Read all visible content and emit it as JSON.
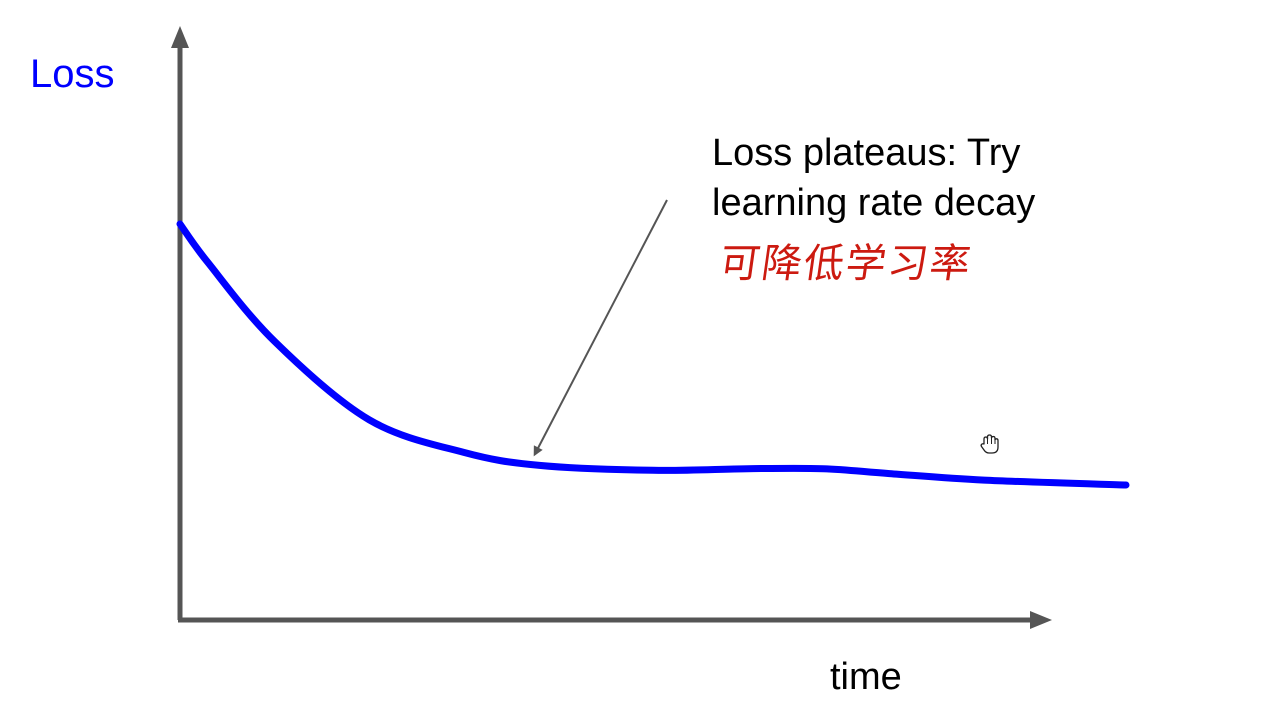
{
  "chart_data": {
    "type": "line",
    "title": "",
    "xlabel": "time",
    "ylabel": "Loss",
    "grid": false,
    "legend": "none",
    "x": [
      0,
      0.03,
      0.1,
      0.2,
      0.3,
      0.38,
      0.5,
      0.6,
      0.68,
      0.75,
      0.85,
      1.0
    ],
    "series": [
      {
        "values": [
          1.0,
          0.88,
          0.64,
          0.4,
          0.3,
          0.26,
          0.245,
          0.25,
          0.25,
          0.235,
          0.215,
          0.2
        ],
        "color": "#0000ff"
      }
    ],
    "xlim": [
      0,
      1.15
    ],
    "ylim": [
      -0.65,
      1.65
    ],
    "annotations": [
      {
        "text": "Loss plateaus: Try learning rate decay",
        "points_to_x": 0.38,
        "points_to_y": 0.26
      }
    ]
  },
  "annotation": {
    "line1": "Loss plateaus: Try",
    "line2": "learning rate decay"
  },
  "handwritten_note": "可降低学习率",
  "colors": {
    "curve": "#0000ff",
    "axes": "#555555",
    "note": "#cc1a10"
  },
  "icons": {
    "cursor": "hand-cursor-icon"
  }
}
